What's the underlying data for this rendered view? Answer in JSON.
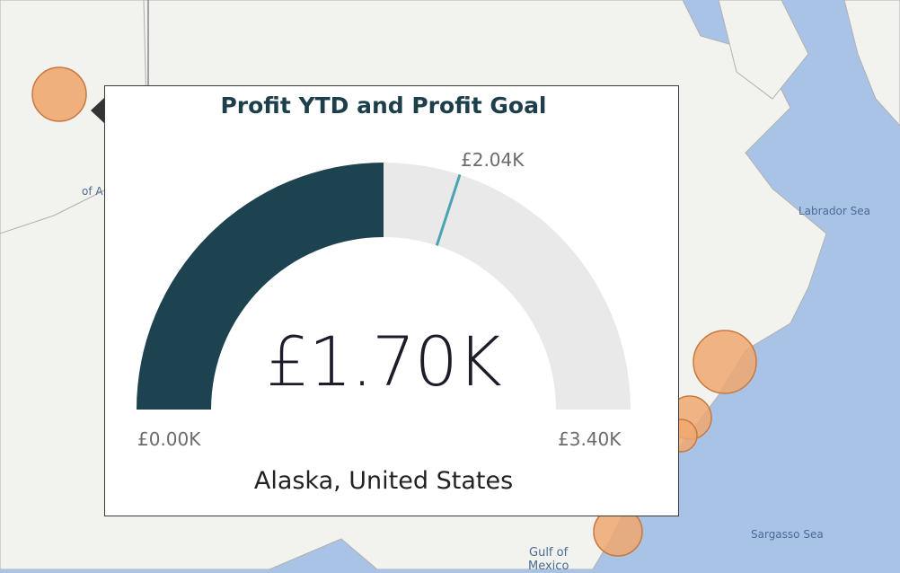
{
  "map": {
    "labels": [
      "Labrador Sea",
      "Sargasso Sea",
      "Gulf of",
      "Mexico",
      "of A"
    ],
    "colors": {
      "water": "#a9c3e6",
      "land": "#f2f2ee",
      "border": "#b0b0b0",
      "bubble": "#f0a870",
      "bubble_stroke": "#c8783e"
    }
  },
  "tooltip": {
    "location": "Alaska, United States"
  },
  "chart_data": {
    "type": "gauge",
    "title": "Profit YTD and Profit Goal",
    "value": 1.7,
    "value_label": "£1.70K",
    "min": 0.0,
    "min_label": "£0.00K",
    "max": 3.4,
    "max_label": "£3.40K",
    "target": 2.04,
    "target_label": "£2.04K",
    "unit": "K GBP",
    "colors": {
      "fill": "#1d4350",
      "track": "#e9e9e9",
      "target": "#4aa3b0"
    }
  }
}
